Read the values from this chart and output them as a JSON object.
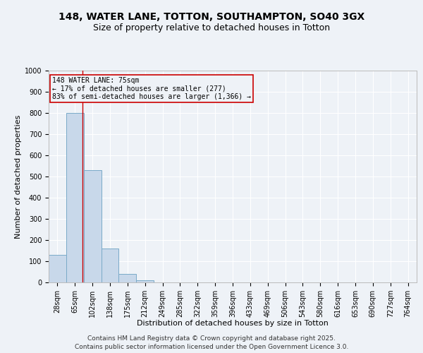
{
  "title_line1": "148, WATER LANE, TOTTON, SOUTHAMPTON, SO40 3GX",
  "title_line2": "Size of property relative to detached houses in Totton",
  "xlabel": "Distribution of detached houses by size in Totton",
  "ylabel": "Number of detached properties",
  "categories": [
    "28sqm",
    "65sqm",
    "102sqm",
    "138sqm",
    "175sqm",
    "212sqm",
    "249sqm",
    "285sqm",
    "322sqm",
    "359sqm",
    "396sqm",
    "433sqm",
    "469sqm",
    "506sqm",
    "543sqm",
    "580sqm",
    "616sqm",
    "653sqm",
    "690sqm",
    "727sqm",
    "764sqm"
  ],
  "values": [
    130,
    800,
    530,
    160,
    40,
    10,
    0,
    0,
    0,
    0,
    0,
    0,
    0,
    0,
    0,
    0,
    0,
    0,
    0,
    0,
    0
  ],
  "bar_color": "#c8d8ea",
  "bar_edge_color": "#7aaac8",
  "red_line_x": 1.45,
  "annotation_text": "148 WATER LANE: 75sqm\n← 17% of detached houses are smaller (277)\n83% of semi-detached houses are larger (1,366) →",
  "annotation_box_color": "#cc0000",
  "ylim": [
    0,
    1000
  ],
  "yticks": [
    0,
    100,
    200,
    300,
    400,
    500,
    600,
    700,
    800,
    900,
    1000
  ],
  "footer_line1": "Contains HM Land Registry data © Crown copyright and database right 2025.",
  "footer_line2": "Contains public sector information licensed under the Open Government Licence 3.0.",
  "bg_color": "#eef2f7",
  "grid_color": "#ffffff",
  "title_fontsize": 10,
  "subtitle_fontsize": 9,
  "axis_label_fontsize": 8,
  "tick_fontsize": 7,
  "footer_fontsize": 6.5,
  "ann_fontsize": 7
}
